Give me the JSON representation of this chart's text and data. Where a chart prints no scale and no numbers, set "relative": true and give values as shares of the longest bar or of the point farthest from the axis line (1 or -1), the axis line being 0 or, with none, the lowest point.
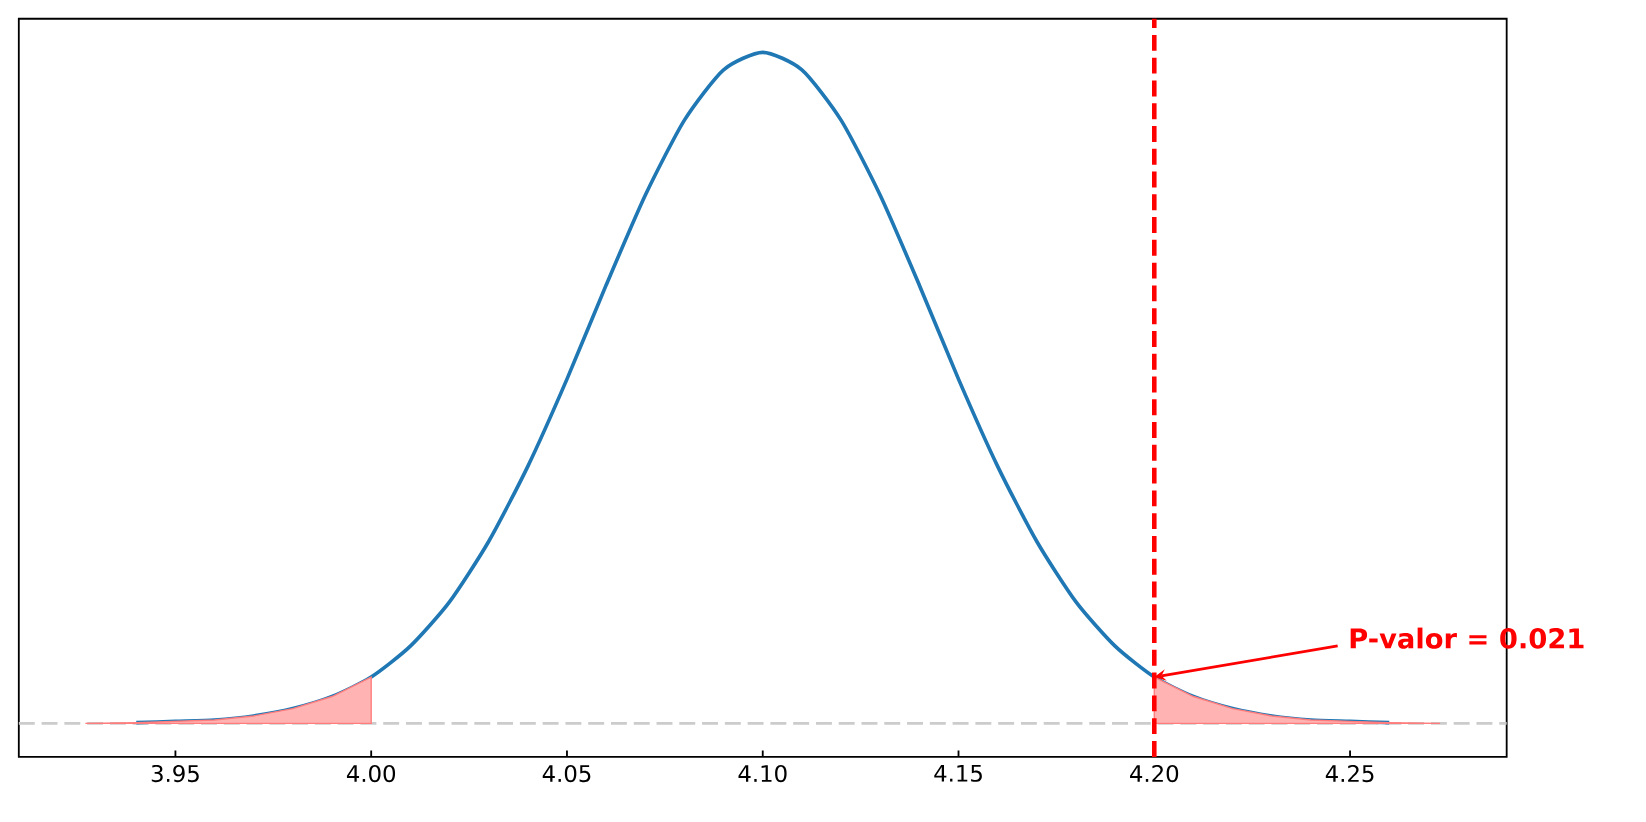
{
  "chart_data": {
    "type": "line",
    "relative": true,
    "tick_labels": "x",
    "xlim": [
      3.91,
      4.29
    ],
    "xticks": [
      {
        "value": 3.95,
        "label": "3.95"
      },
      {
        "value": 4.0,
        "label": "4.00"
      },
      {
        "value": 4.05,
        "label": "4.05"
      },
      {
        "value": 4.1,
        "label": "4.10"
      },
      {
        "value": 4.15,
        "label": "4.15"
      },
      {
        "value": 4.2,
        "label": "4.20"
      },
      {
        "value": 4.25,
        "label": "4.25"
      }
    ],
    "series": [
      {
        "type": "line",
        "color": "#1f77b4",
        "x": [
          3.94,
          3.95,
          3.96,
          3.97,
          3.98,
          3.99,
          4.0,
          4.01,
          4.02,
          4.03,
          4.04,
          4.05,
          4.06,
          4.07,
          4.08,
          4.09,
          4.1,
          4.11,
          4.12,
          4.13,
          4.14,
          4.15,
          4.16,
          4.17,
          4.18,
          4.19,
          4.2,
          4.21,
          4.22,
          4.23,
          4.24,
          4.25,
          4.26
        ],
        "values": [
          0.001,
          0.003,
          0.005,
          0.011,
          0.022,
          0.04,
          0.069,
          0.115,
          0.181,
          0.271,
          0.383,
          0.513,
          0.653,
          0.787,
          0.899,
          0.974,
          1,
          0.974,
          0.899,
          0.787,
          0.653,
          0.513,
          0.383,
          0.271,
          0.181,
          0.115,
          0.069,
          0.04,
          0.022,
          0.011,
          0.005,
          0.003,
          0.001
        ]
      },
      {
        "type": "area",
        "color": "#ffb3b3",
        "x": [
          3.927,
          3.94,
          3.95,
          3.96,
          3.97,
          3.98,
          3.99,
          4.0
        ],
        "values": [
          0,
          0.001,
          0.003,
          0.005,
          0.011,
          0.022,
          0.04,
          0.069
        ]
      },
      {
        "type": "area",
        "color": "#ffb3b3",
        "x": [
          4.2,
          4.21,
          4.22,
          4.23,
          4.24,
          4.25,
          4.26,
          4.273
        ],
        "values": [
          0.069,
          0.04,
          0.022,
          0.011,
          0.005,
          0.003,
          0.001,
          0
        ]
      }
    ],
    "ref_lines": [
      {
        "axis": "x",
        "value": 4.2,
        "color": "#ff0000",
        "line_style": "dashed"
      },
      {
        "axis": "y",
        "value": 0,
        "color": "#cccccc",
        "line_style": "dashed"
      }
    ],
    "annotations": [
      {
        "text": "P-valor = 0.021",
        "x": 4.2,
        "y": 0.069
      }
    ]
  }
}
